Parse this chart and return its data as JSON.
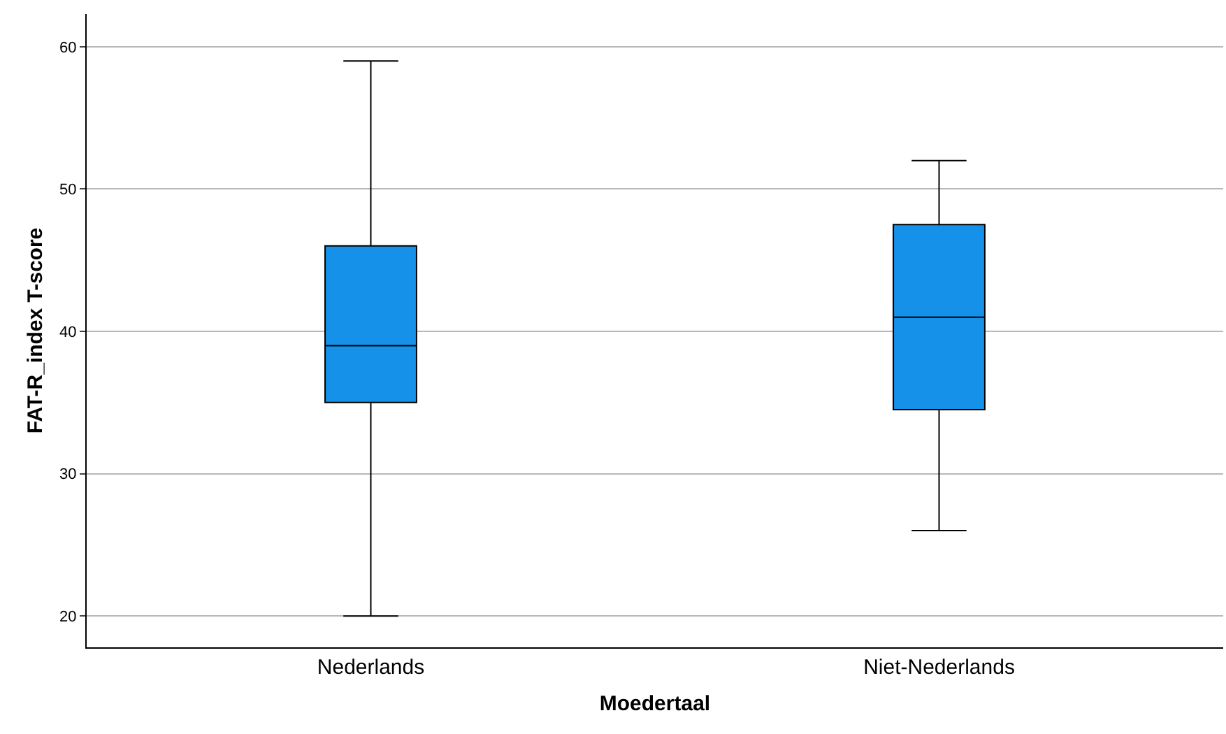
{
  "chart_data": {
    "type": "box",
    "xlabel": "Moedertaal",
    "ylabel": "FAT-R_index T-score",
    "categories": [
      "Nederlands",
      "Niet-Nederlands"
    ],
    "boxes": [
      {
        "low": 20,
        "q1": 35,
        "median": 39,
        "q3": 46,
        "high": 59
      },
      {
        "low": 26,
        "q1": 34.5,
        "median": 41,
        "q3": 47.5,
        "high": 52
      }
    ],
    "color": "#1591ea",
    "ylim": [
      17.8,
      62.3
    ],
    "yticks": [
      20,
      30,
      40,
      50,
      60
    ],
    "grid": "y",
    "legend": false
  }
}
